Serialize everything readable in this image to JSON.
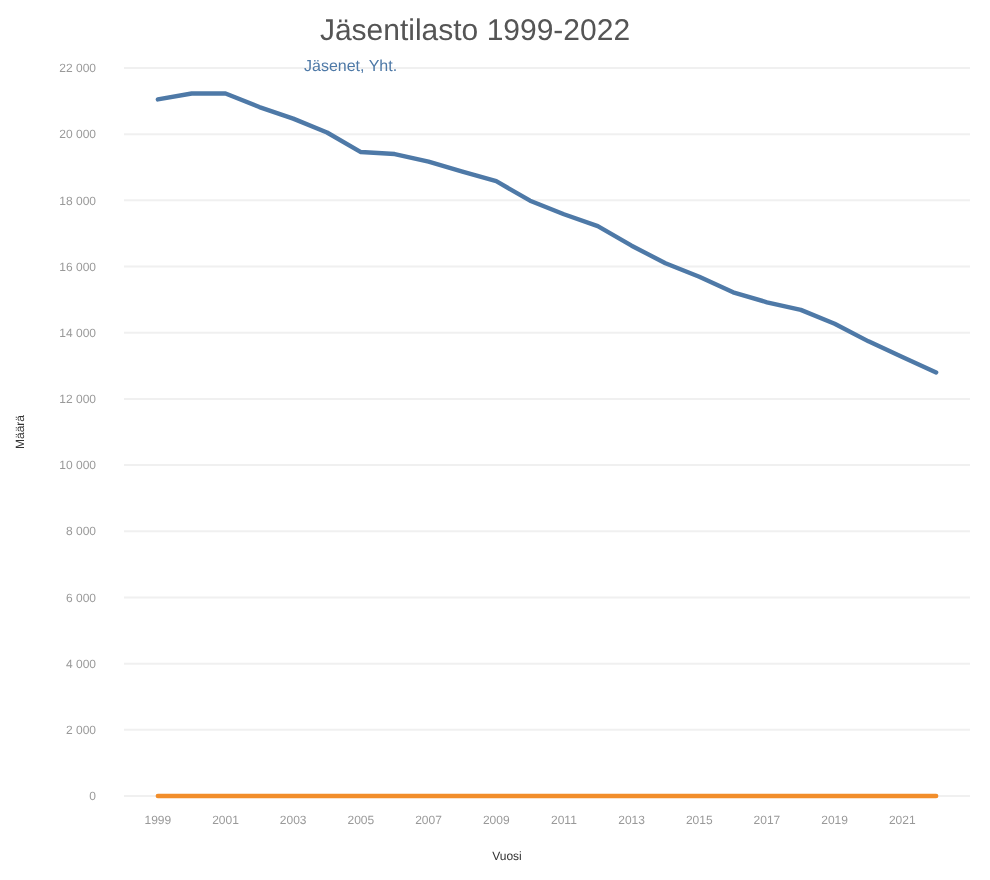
{
  "chart_data": {
    "type": "line",
    "title": "Jäsentilasto 1999-2022",
    "xlabel": "Vuosi",
    "ylabel": "Määrä",
    "x": [
      1999,
      2000,
      2001,
      2002,
      2003,
      2004,
      2005,
      2006,
      2007,
      2008,
      2009,
      2010,
      2011,
      2012,
      2013,
      2014,
      2015,
      2016,
      2017,
      2018,
      2019,
      2020,
      2021,
      2022
    ],
    "series": [
      {
        "name": "Jäsenet, Yht.",
        "color": "#4e79a7",
        "values": [
          21050,
          21230,
          21230,
          20820,
          20470,
          20050,
          19460,
          19400,
          19170,
          18870,
          18580,
          17990,
          17580,
          17220,
          16630,
          16100,
          15690,
          15220,
          14920,
          14690,
          14270,
          13740,
          13270,
          12800
        ]
      },
      {
        "color": "#f28e2b",
        "values": [
          0,
          0,
          0,
          0,
          0,
          0,
          0,
          0,
          0,
          0,
          0,
          0,
          0,
          0,
          0,
          0,
          0,
          0,
          0,
          0,
          0,
          0,
          0,
          0
        ]
      }
    ],
    "xlim": [
      1998,
      2023
    ],
    "xticks": [
      1999,
      2001,
      2003,
      2005,
      2007,
      2009,
      2011,
      2013,
      2015,
      2017,
      2019,
      2021
    ],
    "ylim": [
      0,
      22000
    ],
    "yticks": [
      0,
      {
        "value": 2000,
        "label": "2 000"
      },
      {
        "value": 4000,
        "label": "4 000"
      },
      {
        "value": 6000,
        "label": "6 000"
      },
      {
        "value": 8000,
        "label": "8 000"
      },
      {
        "value": 10000,
        "label": "10 000"
      },
      {
        "value": 12000,
        "label": "12 000"
      },
      {
        "value": 14000,
        "label": "14 000"
      },
      {
        "value": 16000,
        "label": "16 000"
      },
      {
        "value": 18000,
        "label": "18 000"
      },
      {
        "value": 20000,
        "label": "20 000"
      },
      {
        "value": 22000,
        "label": "22 000"
      }
    ],
    "grid": "y",
    "line_style": "solid",
    "marker": "none"
  }
}
